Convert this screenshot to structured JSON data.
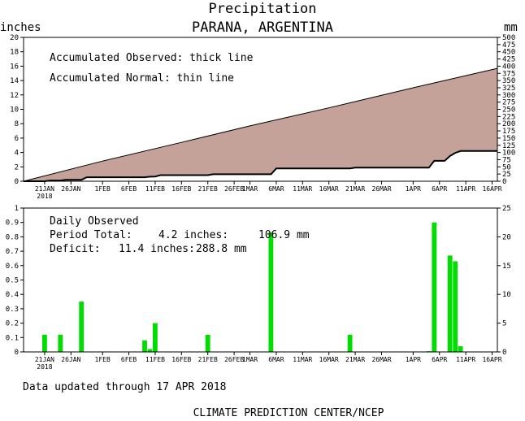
{
  "title": "Precipitation",
  "subtitle": "PARANA, ARGENTINA",
  "footer_updated": "Data updated through 17 APR 2018",
  "footer_credit": "CLIMATE PREDICTION CENTER/NCEP",
  "colors": {
    "normal_fill": "#c4a29a",
    "observed_fill": "#ffffff",
    "bar": "#00dd00",
    "axes": "#000000"
  },
  "x_axis": {
    "start_date": "2018-01-17",
    "end_date": "2018-04-17",
    "ticks": [
      {
        "date": "2018-01-21",
        "label": "21JAN",
        "label2": "2018"
      },
      {
        "date": "2018-01-26",
        "label": "26JAN"
      },
      {
        "date": "2018-02-01",
        "label": "1FEB"
      },
      {
        "date": "2018-02-06",
        "label": "6FEB"
      },
      {
        "date": "2018-02-11",
        "label": "11FEB"
      },
      {
        "date": "2018-02-16",
        "label": "16FEB"
      },
      {
        "date": "2018-02-21",
        "label": "21FEB"
      },
      {
        "date": "2018-02-26",
        "label": "26FEB"
      },
      {
        "date": "2018-03-01",
        "label": "1MAR"
      },
      {
        "date": "2018-03-06",
        "label": "6MAR"
      },
      {
        "date": "2018-03-11",
        "label": "11MAR"
      },
      {
        "date": "2018-03-16",
        "label": "16MAR"
      },
      {
        "date": "2018-03-21",
        "label": "21MAR"
      },
      {
        "date": "2018-03-26",
        "label": "26MAR"
      },
      {
        "date": "2018-04-01",
        "label": "1APR"
      },
      {
        "date": "2018-04-06",
        "label": "6APR"
      },
      {
        "date": "2018-04-11",
        "label": "11APR"
      },
      {
        "date": "2018-04-16",
        "label": "16APR"
      }
    ]
  },
  "chart_data": [
    {
      "type": "area",
      "ylabel": "inches",
      "ylabel_right": "mm",
      "ylim": [
        0,
        20
      ],
      "ylim_right": [
        0,
        500
      ],
      "yticks": [
        0,
        2,
        4,
        6,
        8,
        10,
        12,
        14,
        16,
        18,
        20
      ],
      "yticks_right": [
        0,
        25,
        50,
        75,
        100,
        125,
        150,
        175,
        200,
        225,
        250,
        275,
        300,
        325,
        350,
        375,
        400,
        425,
        450,
        475,
        500
      ],
      "legend": [
        "Accumulated Observed: thick line",
        "Accumulated Normal: thin line"
      ],
      "series": [
        {
          "name": "Accumulated Normal",
          "x": [
            "2018-01-17",
            "2018-02-01",
            "2018-02-16",
            "2018-03-01",
            "2018-03-16",
            "2018-04-01",
            "2018-04-17"
          ],
          "values": [
            0,
            2.8,
            5.4,
            7.7,
            10.2,
            13.0,
            15.7
          ]
        },
        {
          "name": "Accumulated Observed",
          "x": [
            "2018-01-17",
            "2018-01-21",
            "2018-01-22",
            "2018-01-24",
            "2018-01-25",
            "2018-01-28",
            "2018-01-29",
            "2018-02-09",
            "2018-02-10",
            "2018-02-11",
            "2018-02-12",
            "2018-02-21",
            "2018-02-22",
            "2018-03-05",
            "2018-03-06",
            "2018-03-20",
            "2018-03-21",
            "2018-04-04",
            "2018-04-05",
            "2018-04-07",
            "2018-04-08",
            "2018-04-09",
            "2018-04-10",
            "2018-04-17"
          ],
          "values": [
            0,
            0,
            0.1,
            0.1,
            0.2,
            0.2,
            0.55,
            0.55,
            0.63,
            0.65,
            0.85,
            0.85,
            0.97,
            0.97,
            1.77,
            1.77,
            1.89,
            1.89,
            2.84,
            2.84,
            3.51,
            3.94,
            4.2,
            4.2
          ]
        }
      ]
    },
    {
      "type": "bar",
      "ylim": [
        0,
        1
      ],
      "ylim_right": [
        0,
        25
      ],
      "yticks": [
        0,
        0.1,
        0.2,
        0.3,
        0.4,
        0.5,
        0.6,
        0.7,
        0.8,
        0.9,
        1
      ],
      "yticks_right": [
        0,
        5,
        10,
        15,
        20,
        25
      ],
      "summary": {
        "heading": "Daily Observed",
        "period_label": "Period Total:",
        "period_inches": "4.2 inches:",
        "period_mm": "106.9 mm",
        "deficit_label": "Deficit:",
        "deficit_inches": "11.4 inches:",
        "deficit_mm": "288.8 mm"
      },
      "series": [
        {
          "name": "Daily Observed",
          "x": [
            "2018-01-21",
            "2018-01-24",
            "2018-01-28",
            "2018-02-09",
            "2018-02-10",
            "2018-02-11",
            "2018-02-21",
            "2018-03-05",
            "2018-03-20",
            "2018-04-04",
            "2018-04-05",
            "2018-04-08",
            "2018-04-09",
            "2018-04-10"
          ],
          "values": [
            0.12,
            0.12,
            0.35,
            0.08,
            0.02,
            0.2,
            0.12,
            0.83,
            0.12,
            0.005,
            0.9,
            0.67,
            0.63,
            0.04
          ]
        }
      ]
    }
  ]
}
